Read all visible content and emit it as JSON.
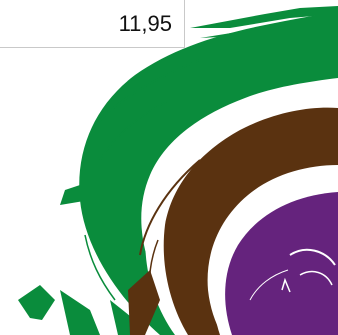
{
  "display": {
    "value": "11,95"
  },
  "artwork": {
    "description_icon": "swirl-logo",
    "colors": {
      "green": "#0a8c3c",
      "brown": "#5a3210",
      "purple": "#65237d",
      "background": "#ffffff"
    }
  }
}
